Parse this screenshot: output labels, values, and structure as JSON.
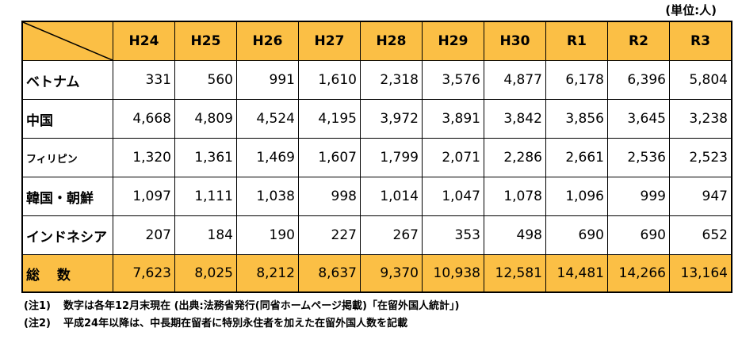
{
  "unit": "(単位:人)",
  "years": [
    "H24",
    "H25",
    "H26",
    "H27",
    "H28",
    "H29",
    "H30",
    "R1",
    "R2",
    "R3"
  ],
  "rows": [
    {
      "label": "ベトナム",
      "values": [
        "331",
        "560",
        "991",
        "1,610",
        "2,318",
        "3,576",
        "4,877",
        "6,178",
        "6,396",
        "5,804"
      ]
    },
    {
      "label": "中国",
      "values": [
        "4,668",
        "4,809",
        "4,524",
        "4,195",
        "3,972",
        "3,891",
        "3,842",
        "3,856",
        "3,645",
        "3,238"
      ]
    },
    {
      "label": "フィリピン",
      "values": [
        "1,320",
        "1,361",
        "1,469",
        "1,607",
        "1,799",
        "2,071",
        "2,286",
        "2,661",
        "2,536",
        "2,523"
      ]
    },
    {
      "label": "韓国・朝鮮",
      "values": [
        "1,097",
        "1,111",
        "1,038",
        "998",
        "1,014",
        "1,047",
        "1,078",
        "1,096",
        "999",
        "947"
      ]
    },
    {
      "label": "インドネシア",
      "values": [
        "207",
        "184",
        "190",
        "227",
        "267",
        "353",
        "498",
        "690",
        "690",
        "652"
      ]
    }
  ],
  "total": {
    "label": "総 数",
    "values": [
      "7,623",
      "8,025",
      "8,212",
      "8,637",
      "9,370",
      "10,938",
      "12,581",
      "14,481",
      "14,266",
      "13,164"
    ]
  },
  "notes": [
    {
      "tag": "(注1)",
      "text": "数字は各年12月末現在 (出典:法務省発行(同省ホームページ掲載)「在留外国人統計」)"
    },
    {
      "tag": "(注2)",
      "text": "平成24年以降は、中長期在留者に特別永住者を加えた在留外国人数を記載"
    }
  ]
}
